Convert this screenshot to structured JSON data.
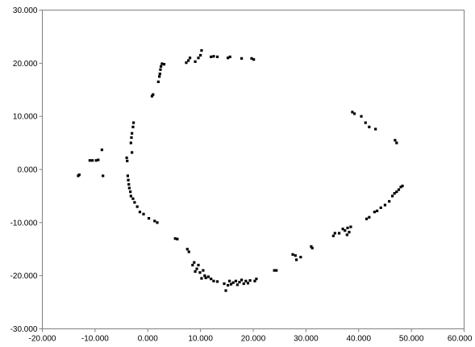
{
  "chart_data": {
    "type": "scatter",
    "title": "",
    "xlabel": "",
    "ylabel": "",
    "xlim": [
      -20,
      60
    ],
    "ylim": [
      -30,
      30
    ],
    "x_ticks": [
      "-20.000",
      "-10.000",
      "0.000",
      "10.000",
      "20.000",
      "30.000",
      "40.000",
      "50.000",
      "60.000"
    ],
    "y_ticks": [
      "30.000",
      "20.000",
      "10.000",
      "0.000",
      "-10.000",
      "-20.000",
      "-30.000"
    ],
    "grid": false,
    "legend": "none",
    "marker_color": "#000000",
    "series": [
      {
        "points": [
          [
            -13.0,
            -1.0
          ],
          [
            -13.2,
            -1.2
          ],
          [
            -11.0,
            1.7
          ],
          [
            -10.5,
            1.7
          ],
          [
            -9.8,
            1.7
          ],
          [
            -9.4,
            1.8
          ],
          [
            -8.7,
            3.7
          ],
          [
            -8.5,
            -1.2
          ],
          [
            -4.0,
            2.2
          ],
          [
            -3.9,
            1.6
          ],
          [
            -3.8,
            -1.2
          ],
          [
            -3.7,
            -2.0
          ],
          [
            -3.6,
            -2.8
          ],
          [
            -3.5,
            -3.5
          ],
          [
            -3.3,
            -4.2
          ],
          [
            -3.2,
            -5.0
          ],
          [
            -2.8,
            -5.5
          ],
          [
            -2.5,
            -6.2
          ],
          [
            -3.0,
            3.2
          ],
          [
            -3.2,
            5.0
          ],
          [
            -3.1,
            6.0
          ],
          [
            -3.0,
            6.8
          ],
          [
            -2.8,
            8.0
          ],
          [
            -2.7,
            8.8
          ],
          [
            -2.0,
            -7.0
          ],
          [
            -1.5,
            -8.0
          ],
          [
            -0.8,
            -8.4
          ],
          [
            0.2,
            -9.2
          ],
          [
            1.3,
            -9.7
          ],
          [
            1.8,
            -10.0
          ],
          [
            0.8,
            13.8
          ],
          [
            1.0,
            14.1
          ],
          [
            2.0,
            16.5
          ],
          [
            2.2,
            17.5
          ],
          [
            2.3,
            18.0
          ],
          [
            2.4,
            18.8
          ],
          [
            2.5,
            19.4
          ],
          [
            2.7,
            19.9
          ],
          [
            3.1,
            19.8
          ],
          [
            5.2,
            -13.0
          ],
          [
            5.6,
            -13.1
          ],
          [
            7.5,
            -15.0
          ],
          [
            7.8,
            -15.5
          ],
          [
            7.3,
            20.1
          ],
          [
            7.7,
            20.5
          ],
          [
            8.0,
            21.0
          ],
          [
            8.5,
            -18.0
          ],
          [
            8.8,
            -17.5
          ],
          [
            9.0,
            -19.2
          ],
          [
            9.3,
            -18.7
          ],
          [
            9.6,
            -18.0
          ],
          [
            9.9,
            -19.4
          ],
          [
            10.2,
            -20.5
          ],
          [
            10.5,
            -19.0
          ],
          [
            10.8,
            -20.0
          ],
          [
            9.0,
            20.3
          ],
          [
            9.6,
            21.0
          ],
          [
            10.0,
            21.5
          ],
          [
            10.2,
            22.4
          ],
          [
            11.0,
            -20.4
          ],
          [
            11.5,
            -20.2
          ],
          [
            12.0,
            -20.6
          ],
          [
            12.5,
            -21.0
          ],
          [
            13.2,
            -21.1
          ],
          [
            12.0,
            21.2
          ],
          [
            12.5,
            21.3
          ],
          [
            13.2,
            21.2
          ],
          [
            14.5,
            -21.5
          ],
          [
            14.8,
            -22.8
          ],
          [
            15.2,
            -21.8
          ],
          [
            15.5,
            -21.0
          ],
          [
            15.8,
            -21.6
          ],
          [
            16.2,
            -21.3
          ],
          [
            16.7,
            -21.0
          ],
          [
            17.0,
            -21.7
          ],
          [
            17.4,
            -21.2
          ],
          [
            17.8,
            -20.8
          ],
          [
            18.2,
            -21.5
          ],
          [
            18.6,
            -21.0
          ],
          [
            19.0,
            -21.4
          ],
          [
            19.4,
            -20.9
          ],
          [
            20.3,
            -21.0
          ],
          [
            20.6,
            -20.6
          ],
          [
            15.2,
            21.0
          ],
          [
            15.6,
            21.2
          ],
          [
            17.8,
            20.9
          ],
          [
            19.7,
            20.9
          ],
          [
            20.1,
            20.7
          ],
          [
            24.0,
            -19.0
          ],
          [
            24.4,
            -19.0
          ],
          [
            27.5,
            -16.0
          ],
          [
            28.0,
            -16.2
          ],
          [
            28.2,
            -17.0
          ],
          [
            29.0,
            -16.5
          ],
          [
            31.0,
            -14.5
          ],
          [
            31.2,
            -14.8
          ],
          [
            35.2,
            -12.5
          ],
          [
            35.5,
            -12.0
          ],
          [
            36.3,
            -12.0
          ],
          [
            37.0,
            -11.2
          ],
          [
            37.4,
            -11.5
          ],
          [
            37.9,
            -11.0
          ],
          [
            38.5,
            -10.8
          ],
          [
            37.8,
            -12.3
          ],
          [
            38.2,
            -11.8
          ],
          [
            38.8,
            10.8
          ],
          [
            39.2,
            10.5
          ],
          [
            40.5,
            10.0
          ],
          [
            41.3,
            8.8
          ],
          [
            42.0,
            8.0
          ],
          [
            43.2,
            7.6
          ],
          [
            41.5,
            -9.3
          ],
          [
            42.0,
            -9.0
          ],
          [
            43.0,
            -8.0
          ],
          [
            43.5,
            -7.8
          ],
          [
            44.2,
            -7.2
          ],
          [
            45.0,
            -6.7
          ],
          [
            45.8,
            -6.0
          ],
          [
            46.4,
            -5.0
          ],
          [
            46.8,
            -4.5
          ],
          [
            47.2,
            -4.2
          ],
          [
            47.6,
            -3.8
          ],
          [
            48.0,
            -3.3
          ],
          [
            48.3,
            -3.1
          ],
          [
            46.9,
            5.5
          ],
          [
            47.2,
            5.0
          ]
        ]
      }
    ]
  }
}
